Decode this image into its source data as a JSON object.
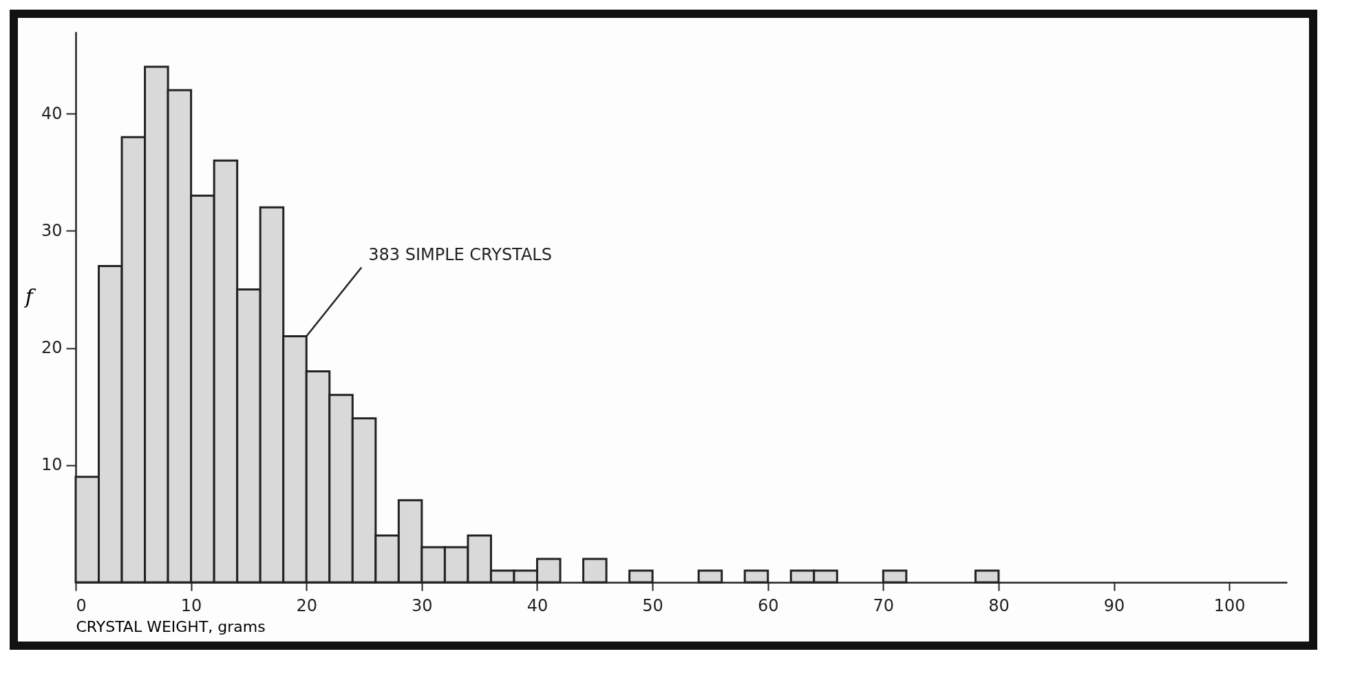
{
  "chart_data": {
    "type": "histogram",
    "xlabel": "CRYSTAL WEIGHT, grams",
    "ylabel": "f",
    "bins": [
      0,
      2,
      4,
      6,
      8,
      10,
      12,
      14,
      16,
      18,
      20,
      22,
      24,
      26,
      28,
      30,
      32,
      34,
      36,
      38,
      40,
      42,
      44,
      46,
      48,
      50,
      52,
      54,
      56,
      58,
      60,
      62,
      64,
      66,
      68,
      70,
      72,
      74,
      76,
      78,
      80
    ],
    "values": [
      9,
      27,
      38,
      44,
      42,
      33,
      36,
      25,
      32,
      21,
      18,
      16,
      14,
      4,
      7,
      3,
      3,
      4,
      1,
      1,
      2,
      0,
      2,
      0,
      1,
      0,
      0,
      1,
      0,
      1,
      0,
      1,
      1,
      0,
      0,
      1,
      0,
      0,
      0,
      1
    ],
    "color": "#d9d9d9",
    "xlim": [
      0,
      105
    ],
    "xticks": [
      0,
      10,
      20,
      30,
      40,
      50,
      60,
      70,
      80,
      90,
      100
    ],
    "ylim": [
      0,
      47
    ],
    "yticks": [
      10,
      20,
      30,
      40
    ],
    "grid": false,
    "annotations": [
      {
        "text": "383 SIMPLE CRYSTALS",
        "x": 20,
        "y": 21
      }
    ]
  }
}
